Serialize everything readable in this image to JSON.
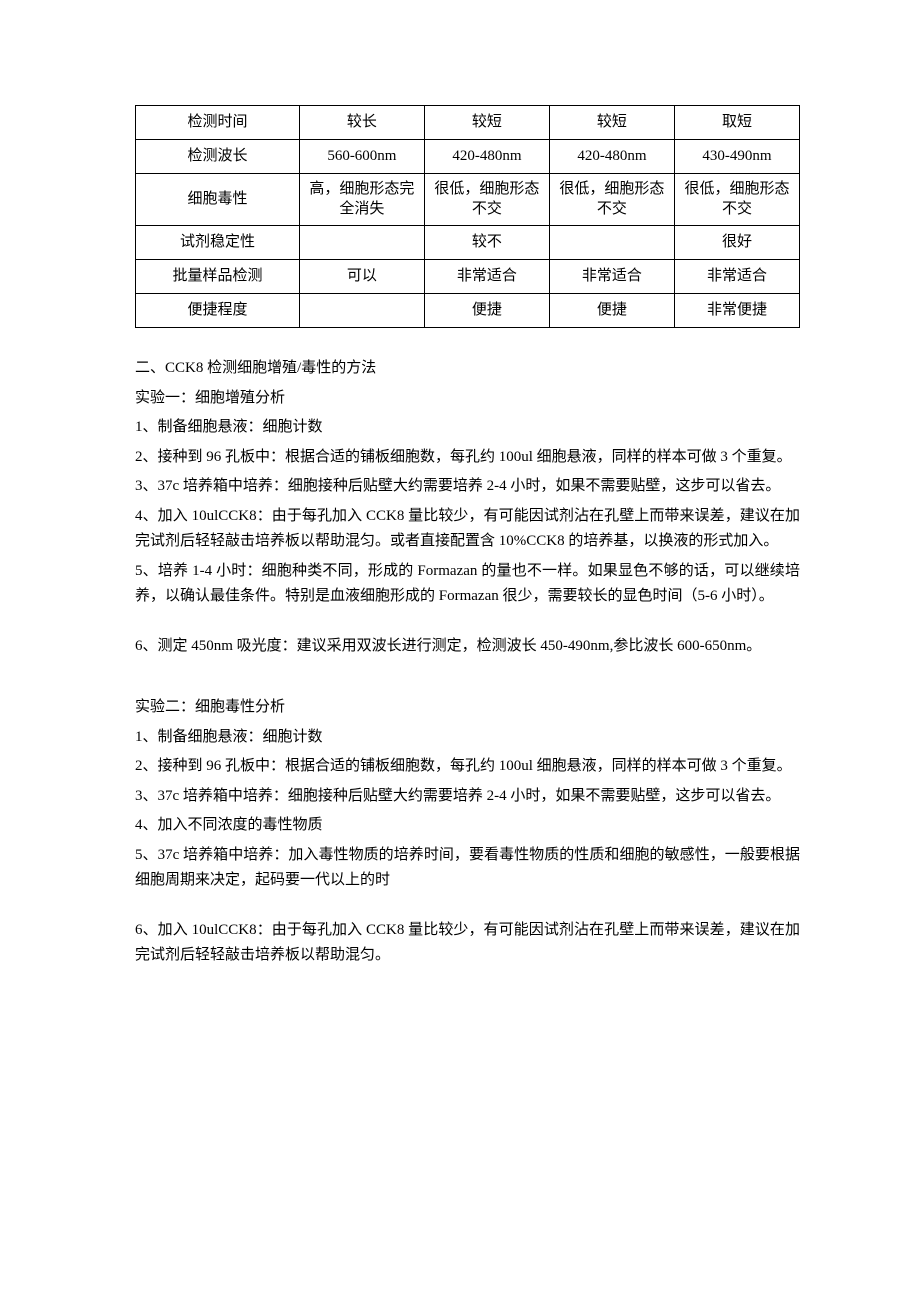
{
  "table": {
    "rows": [
      {
        "label": "检测时间",
        "c1": "较长",
        "c2": "较短",
        "c3": "较短",
        "c4": "取短"
      },
      {
        "label": "检测波长",
        "c1": "560-600nm",
        "c2": "420-480nm",
        "c3": "420-480nm",
        "c4": "430-490nm"
      },
      {
        "label": "细胞毒性",
        "c1": "高，细胞形态完全消失",
        "c2": "很低，细胞形态不交",
        "c3": "很低，细胞形态不交",
        "c4": "很低，细胞形态不交"
      },
      {
        "label": "试剂稳定性",
        "c1": "",
        "c2": "较不",
        "c3": "",
        "c4": "很好"
      },
      {
        "label": "批量样品检测",
        "c1": "可以",
        "c2": "非常适合",
        "c3": "非常适合",
        "c4": "非常适合"
      },
      {
        "label": "便捷程度",
        "c1": "",
        "c2": "便捷",
        "c3": "便捷",
        "c4": "非常便捷"
      }
    ]
  },
  "section_title": "二、CCK8 检测细胞增殖/毒性的方法",
  "exp1": {
    "title": "实验一：细胞增殖分析",
    "l1": "1、制备细胞悬液：细胞计数",
    "l2": "2、接种到 96 孔板中：根据合适的铺板细胞数，每孔约 100ul 细胞悬液，同样的样本可做 3 个重复。",
    "l3": "3、37c 培养箱中培养：细胞接种后贴壁大约需要培养 2-4 小时，如果不需要贴壁，这步可以省去。",
    "l4": "4、加入 10ulCCK8：由于每孔加入 CCK8 量比较少，有可能因试剂沾在孔壁上而带来误差，建议在加完试剂后轻轻敲击培养板以帮助混匀。或者直接配置含 10%CCK8 的培养基，以换液的形式加入。",
    "l5": "5、培养 1-4 小时：细胞种类不同，形成的 Formazan 的量也不一样。如果显色不够的话，可以继续培养，以确认最佳条件。特别是血液细胞形成的 Formazan 很少，需要较长的显色时间（5-6 小时）。",
    "l6": "6、测定 450nm 吸光度：建议采用双波长进行测定，检测波长 450-490nm,参比波长 600-650nm。"
  },
  "exp2": {
    "title": "实验二：细胞毒性分析",
    "l1": "1、制备细胞悬液：细胞计数",
    "l2": "2、接种到 96 孔板中：根据合适的铺板细胞数，每孔约 100ul 细胞悬液，同样的样本可做 3 个重复。",
    "l3": "3、37c 培养箱中培养：细胞接种后贴壁大约需要培养 2-4 小时，如果不需要贴壁，这步可以省去。",
    "l4": "4、加入不同浓度的毒性物质",
    "l5": "5、37c 培养箱中培养：加入毒性物质的培养时间，要看毒性物质的性质和细胞的敏感性，一般要根据细胞周期来决定，起码要一代以上的时",
    "l6": "6、加入 10ulCCK8：由于每孔加入 CCK8 量比较少，有可能因试剂沾在孔壁上而带来误差，建议在加完试剂后轻轻敲击培养板以帮助混匀。"
  }
}
